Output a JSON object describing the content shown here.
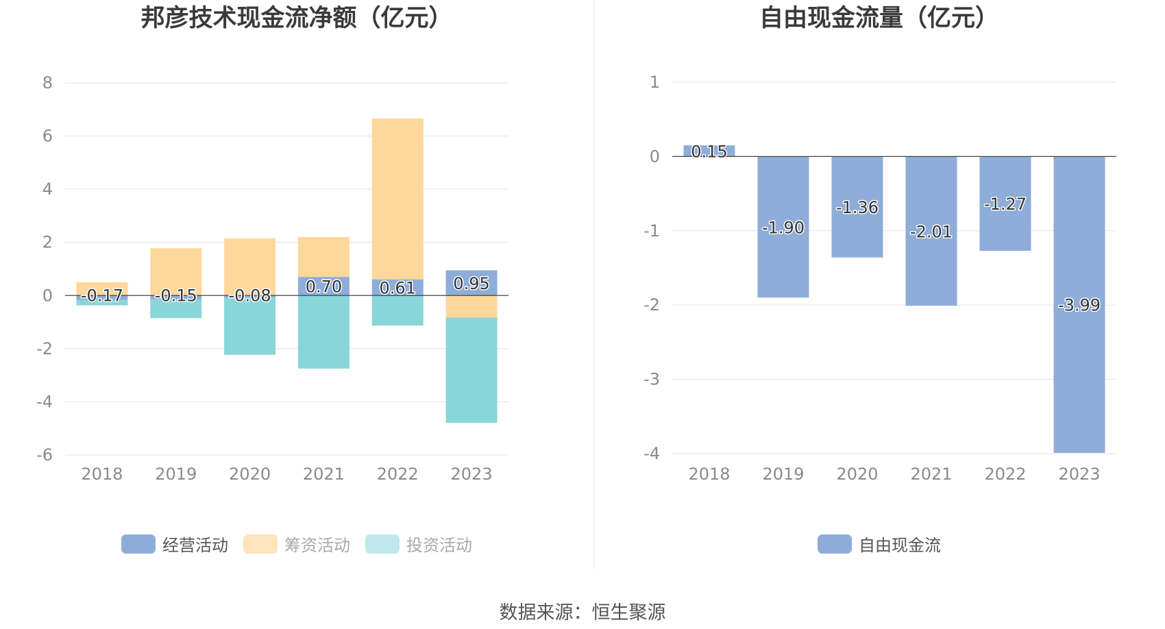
{
  "source_text": "数据来源：恒生聚源",
  "chart_data": [
    {
      "type": "bar",
      "stacked": true,
      "title": "邦彦技术现金流净额（亿元）",
      "categories": [
        "2018",
        "2019",
        "2020",
        "2021",
        "2022",
        "2023"
      ],
      "ylim": [
        -6,
        8
      ],
      "yticks": [
        "8",
        "6",
        "4",
        "2",
        "0",
        "-2",
        "-4",
        "-6"
      ],
      "grid": true,
      "legend_position": "bottom",
      "series": [
        {
          "name": "经营活动",
          "color": "#8eadd9",
          "values": [
            -0.17,
            -0.15,
            -0.08,
            0.7,
            0.61,
            0.95
          ],
          "labels": [
            "-0.17",
            "-0.15",
            "-0.08",
            "0.70",
            "0.61",
            "0.95"
          ]
        },
        {
          "name": "筹资活动",
          "color": "#fed89a",
          "values": [
            0.5,
            1.78,
            2.15,
            1.5,
            6.05,
            -0.83
          ]
        },
        {
          "name": "投资活动",
          "color": "#88d6d9",
          "values": [
            -0.2,
            -0.7,
            -2.15,
            -2.75,
            -1.13,
            -3.96
          ]
        }
      ]
    },
    {
      "type": "bar",
      "title": "自由现金流量（亿元）",
      "categories": [
        "2018",
        "2019",
        "2020",
        "2021",
        "2022",
        "2023"
      ],
      "ylim": [
        -4,
        1
      ],
      "yticks": [
        "1",
        "0",
        "-1",
        "-2",
        "-3",
        "-4"
      ],
      "grid": true,
      "legend_position": "bottom",
      "series": [
        {
          "name": "自由现金流",
          "color": "#8eadd9",
          "values": [
            0.15,
            -1.9,
            -1.36,
            -2.01,
            -1.27,
            -3.99
          ],
          "labels": [
            "0.15",
            "-1.90",
            "-1.36",
            "-2.01",
            "-1.27",
            "-3.99"
          ]
        }
      ]
    }
  ]
}
